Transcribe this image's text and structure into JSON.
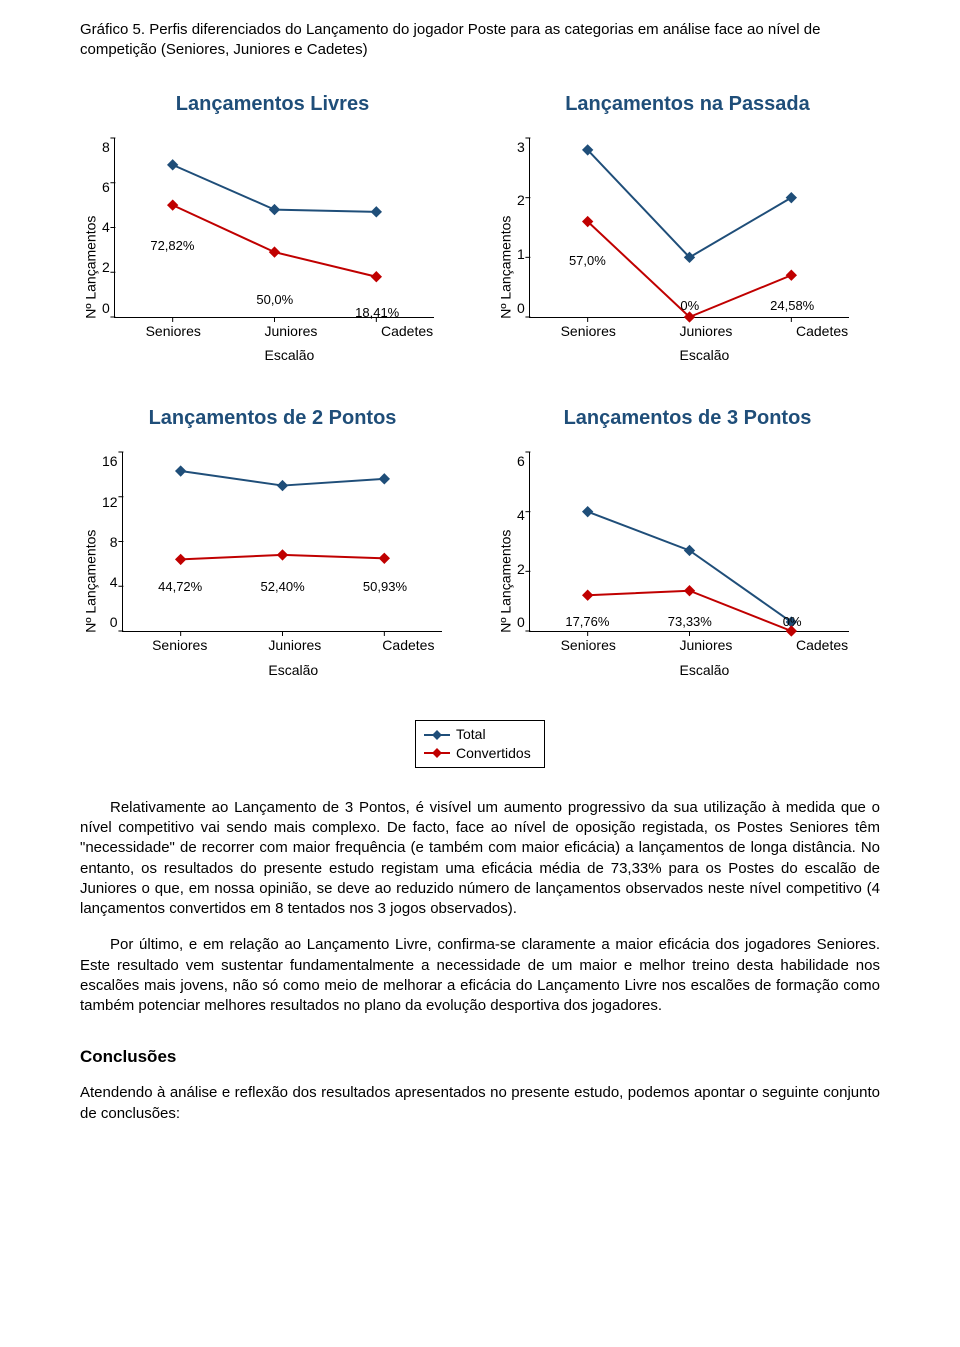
{
  "caption": "Gráfico 5. Perfis diferenciados do Lançamento do jogador Poste para as categorias em análise face ao nível de competição (Seniores, Juniores e Cadetes)",
  "colors": {
    "total": "#1f4e79",
    "convertidos": "#c00000",
    "axis": "#000000",
    "text": "#000000",
    "title": "#1f4e79"
  },
  "axis_label": "Nº Lançamentos",
  "x_axis_title": "Escalão",
  "x_categories": [
    "Seniores",
    "Juniores",
    "Cadetes"
  ],
  "charts": [
    {
      "title": "Lançamentos Livres",
      "y_ticks": [
        8,
        6,
        4,
        2,
        0
      ],
      "y_max": 8,
      "total": [
        6.8,
        4.8,
        4.7
      ],
      "convert": [
        5.0,
        2.9,
        1.8
      ],
      "labels": [
        {
          "text": "72,82%",
          "x": 0,
          "yv": 3.6
        },
        {
          "text": "50,0%",
          "x": 1,
          "yv": 1.2
        },
        {
          "text": "18,41%",
          "x": 2,
          "yv": 0.6
        }
      ]
    },
    {
      "title": "Lançamentos na Passada",
      "y_ticks": [
        3,
        2,
        1,
        0
      ],
      "y_max": 3,
      "total": [
        2.8,
        1.0,
        2.0
      ],
      "convert": [
        1.6,
        0.0,
        0.7
      ],
      "labels": [
        {
          "text": "57,0%",
          "x": 0,
          "yv": 1.1
        },
        {
          "text": "0%",
          "x": 1,
          "yv": 0.35
        },
        {
          "text": "24,58%",
          "x": 2,
          "yv": 0.35
        }
      ]
    },
    {
      "title": "Lançamentos de 2 Pontos",
      "y_ticks": [
        16,
        12,
        8,
        4,
        0
      ],
      "y_max": 16,
      "total": [
        14.3,
        13.0,
        13.6
      ],
      "convert": [
        6.4,
        6.8,
        6.5
      ],
      "labels": [
        {
          "text": "44,72%",
          "x": 0,
          "yv": 4.8
        },
        {
          "text": "52,40%",
          "x": 1,
          "yv": 4.8
        },
        {
          "text": "50,93%",
          "x": 2,
          "yv": 4.8
        }
      ]
    },
    {
      "title": "Lançamentos de 3 Pontos",
      "y_ticks": [
        6,
        4,
        2,
        0
      ],
      "y_max": 6,
      "total": [
        4.0,
        2.7,
        0.3
      ],
      "convert": [
        1.2,
        1.35,
        0.0
      ],
      "labels": [
        {
          "text": "17,76%",
          "x": 0,
          "yv": 0.65
        },
        {
          "text": "73,33%",
          "x": 1,
          "yv": 0.65
        },
        {
          "text": "0%",
          "x": 2,
          "yv": 0.65
        }
      ]
    }
  ],
  "legend": {
    "total": "Total",
    "convert": "Convertidos"
  },
  "paragraph1": "Relativamente ao Lançamento de 3 Pontos, é visível um aumento progressivo da sua utilização à medida que o nível competitivo vai sendo mais complexo. De facto, face ao nível de oposição registada, os Postes Seniores têm \"necessidade\" de recorrer com maior frequência (e também com maior eficácia) a lançamentos de longa distância. No entanto, os resultados do presente estudo registam uma eficácia média de 73,33% para os Postes do escalão de Juniores o que, em nossa opinião, se deve ao reduzido número de lançamentos observados neste nível competitivo (4 lançamentos convertidos em 8 tentados nos 3 jogos observados).",
  "paragraph2": "Por último, e em relação ao Lançamento Livre, confirma-se claramente a maior eficácia dos jogadores Seniores. Este resultado vem sustentar fundamentalmente a necessidade de um maior e melhor treino desta habilidade nos escalões mais jovens, não só como meio de melhorar a eficácia do Lançamento Livre nos escalões de formação como também potenciar melhores resultados no plano da evolução desportiva dos jogadores.",
  "conclusions_head": "Conclusões",
  "conclusions_p": "Atendendo à análise e reflexão dos resultados apresentados no presente estudo, podemos apontar o seguinte conjunto de conclusões:"
}
